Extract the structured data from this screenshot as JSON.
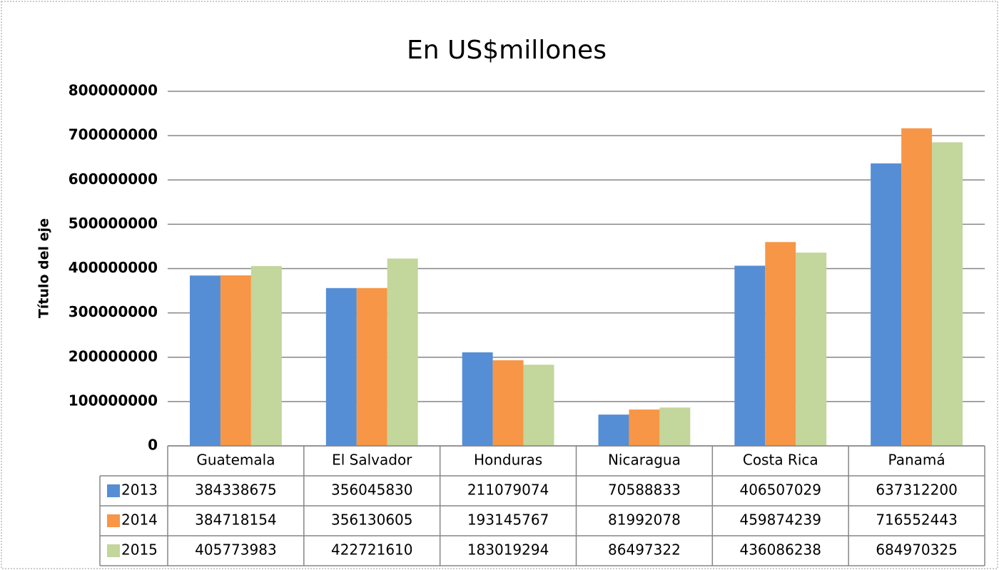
{
  "chart_data": {
    "type": "bar",
    "title": "En US$millones",
    "y_label": "Título del eje",
    "categories": [
      "Guatemala",
      "El Salvador",
      "Honduras",
      "Nicaragua",
      "Costa Rica",
      "Panamá"
    ],
    "series": [
      {
        "name": "2013",
        "color": "#558ed5",
        "values": [
          384338675,
          356045830,
          211079074,
          70588833,
          406507029,
          637312200
        ]
      },
      {
        "name": "2014",
        "color": "#f79646",
        "values": [
          384718154,
          356130605,
          193145767,
          81992078,
          459874239,
          716552443
        ]
      },
      {
        "name": "2015",
        "color": "#c3d69b",
        "values": [
          405773983,
          422721610,
          183019294,
          86497322,
          436086238,
          684970325
        ]
      }
    ],
    "ylim": [
      0,
      800000000
    ],
    "yticks": [
      0,
      100000000,
      200000000,
      300000000,
      400000000,
      500000000,
      600000000,
      700000000,
      800000000
    ],
    "grid": true,
    "data_table": true
  }
}
